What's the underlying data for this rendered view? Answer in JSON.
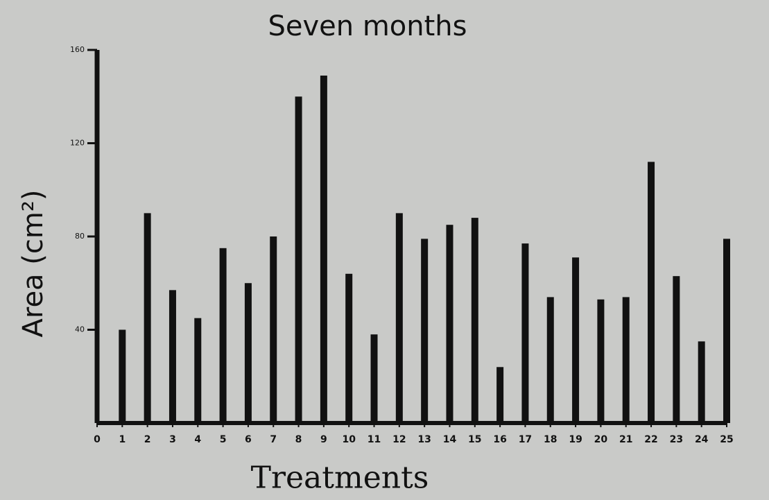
{
  "chart_data": {
    "type": "bar",
    "title": "Seven months",
    "xlabel": "Treatments",
    "ylabel": "Area (cm²)",
    "x": [
      1,
      2,
      3,
      4,
      5,
      6,
      7,
      8,
      9,
      10,
      11,
      12,
      13,
      14,
      15,
      16,
      17,
      18,
      19,
      20,
      21,
      22,
      23,
      24,
      25
    ],
    "values": [
      40,
      90,
      57,
      45,
      75,
      60,
      80,
      140,
      149,
      64,
      38,
      90,
      79,
      85,
      88,
      24,
      77,
      54,
      71,
      53,
      54,
      112,
      63,
      35,
      79
    ],
    "color": "#111111",
    "xlim": [
      0,
      25
    ],
    "xticks": [
      0,
      1,
      2,
      3,
      4,
      5,
      6,
      7,
      8,
      9,
      10,
      11,
      12,
      13,
      14,
      15,
      16,
      17,
      18,
      19,
      20,
      21,
      22,
      23,
      24,
      25
    ],
    "ylim": [
      0,
      160
    ],
    "yticks": [
      40,
      80,
      120,
      160
    ]
  }
}
